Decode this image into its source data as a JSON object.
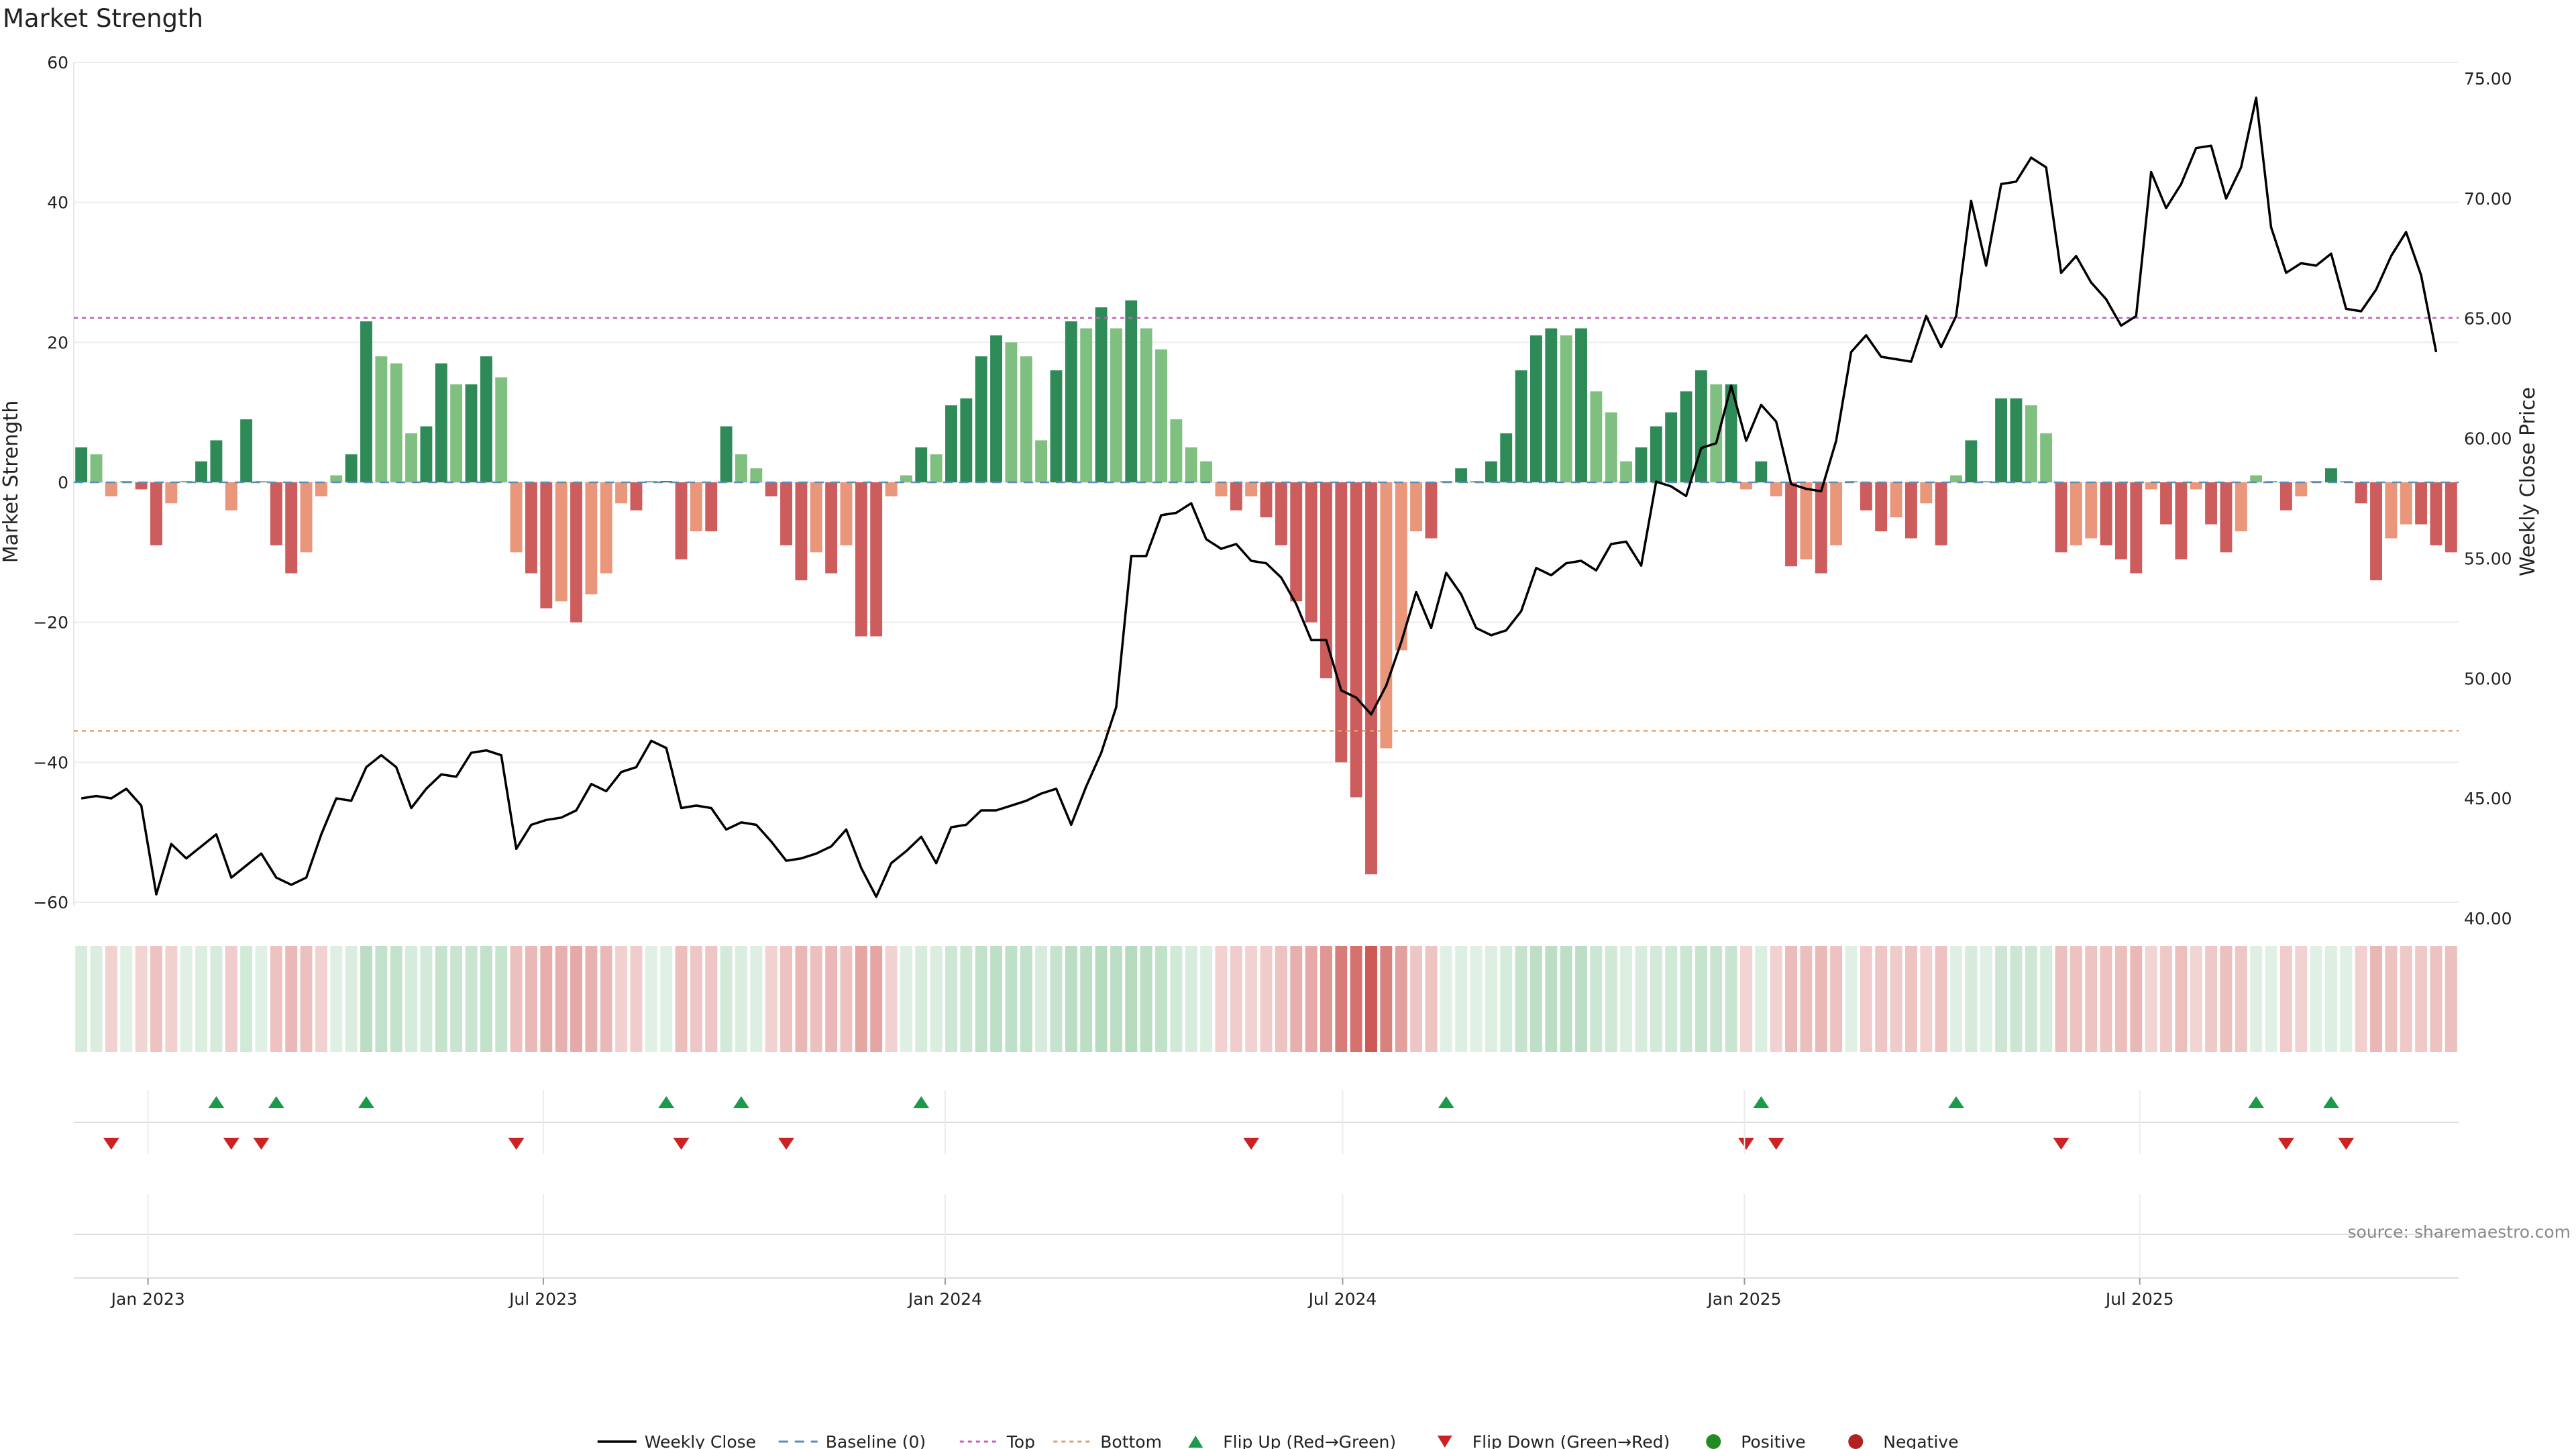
{
  "title": "Market Strength",
  "source": "source: sharemaestro.com",
  "chart_data": {
    "type": "bar",
    "title": "Market Strength",
    "ylabel_left": "Market Strength",
    "ylabel_right": "Weekly Close Price",
    "ylim_left": [
      -60,
      60
    ],
    "ylim_right": [
      40,
      75
    ],
    "yticks_left": [
      "60",
      "40",
      "20",
      "0",
      "−20",
      "−40",
      "−60"
    ],
    "yticks_right": [
      "75.00",
      "70.00",
      "65.00",
      "60.00",
      "55.00",
      "50.00",
      "45.00",
      "40.00"
    ],
    "x_start": "2022-11-28",
    "x_end": "2025-11-24",
    "x_ticks": [
      {
        "date": "2023-01-01",
        "label": "Jan 2023"
      },
      {
        "date": "2023-07-01",
        "label": "Jul 2023"
      },
      {
        "date": "2024-01-01",
        "label": "Jan 2024"
      },
      {
        "date": "2024-07-01",
        "label": "Jul 2024"
      },
      {
        "date": "2025-01-01",
        "label": "Jan 2025"
      },
      {
        "date": "2025-07-01",
        "label": "Jul 2025"
      }
    ],
    "top_level": 23.5,
    "bottom_level": -35.5,
    "strength": [
      5,
      4,
      -2,
      0,
      -1,
      -9,
      -3,
      0,
      3,
      6,
      -4,
      9,
      0,
      -9,
      -13,
      -10,
      -2,
      1,
      4,
      23,
      18,
      17,
      7,
      8,
      17,
      14,
      14,
      18,
      15,
      -10,
      -13,
      -18,
      -17,
      -20,
      -16,
      -13,
      -3,
      -4,
      0,
      0,
      -11,
      -7,
      -7,
      8,
      4,
      2,
      -2,
      -9,
      -14,
      -10,
      -13,
      -9,
      -22,
      -22,
      -2,
      1,
      5,
      4,
      11,
      12,
      18,
      21,
      20,
      18,
      6,
      16,
      23,
      22,
      25,
      22,
      26,
      22,
      19,
      9,
      5,
      3,
      -2,
      -4,
      -2,
      -5,
      -9,
      -17,
      -20,
      -28,
      -40,
      -45,
      -56,
      -38,
      -24,
      -7,
      -8,
      0,
      2,
      0,
      3,
      7,
      16,
      21,
      22,
      21,
      22,
      13,
      10,
      3,
      5,
      8,
      10,
      13,
      16,
      14,
      14,
      -1,
      3,
      -2,
      -12,
      -11,
      -13,
      -9,
      0,
      -4,
      -7,
      -5,
      -8,
      -3,
      -9,
      1,
      6,
      0,
      12,
      12,
      11,
      7,
      -10,
      -9,
      -8,
      -9,
      -11,
      -13,
      -1,
      -6,
      -11,
      -1,
      -6,
      -10,
      -7,
      1,
      0,
      -4,
      -2,
      0,
      2,
      0,
      -3,
      -14,
      -8,
      -6,
      -6,
      -9,
      -10
    ],
    "weekly_close": [
      45.0,
      45.1,
      45.0,
      45.4,
      44.7,
      41.0,
      43.1,
      42.5,
      43.0,
      43.5,
      41.7,
      42.2,
      42.7,
      41.7,
      41.4,
      41.7,
      43.5,
      45.0,
      44.9,
      46.3,
      46.8,
      46.3,
      44.6,
      45.4,
      46.0,
      45.9,
      46.9,
      47.0,
      46.8,
      42.9,
      43.9,
      44.1,
      44.2,
      44.5,
      45.6,
      45.3,
      46.1,
      46.3,
      47.4,
      47.1,
      44.6,
      44.7,
      44.6,
      43.7,
      44.0,
      43.9,
      43.2,
      42.4,
      42.5,
      42.7,
      43.0,
      43.7,
      42.1,
      40.9,
      42.3,
      42.8,
      43.4,
      42.3,
      43.8,
      43.9,
      44.5,
      44.5,
      44.7,
      44.9,
      45.2,
      45.4,
      43.9,
      45.5,
      46.9,
      48.8,
      55.1,
      55.1,
      56.8,
      56.9,
      57.3,
      55.8,
      55.4,
      55.6,
      54.9,
      54.8,
      54.2,
      53.1,
      51.6,
      51.6,
      49.5,
      49.2,
      48.5,
      49.7,
      51.5,
      53.6,
      52.1,
      54.4,
      53.5,
      52.1,
      51.8,
      52.0,
      52.8,
      54.6,
      54.3,
      54.8,
      54.9,
      54.5,
      55.6,
      55.7,
      54.7,
      58.2,
      58.0,
      57.6,
      59.6,
      59.8,
      62.2,
      59.9,
      61.4,
      60.7,
      58.1,
      57.9,
      57.8,
      59.9,
      63.6,
      64.3,
      63.4,
      63.3,
      63.2,
      65.1,
      63.8,
      65.1,
      69.9,
      67.2,
      70.6,
      70.7,
      71.7,
      71.3,
      66.9,
      67.6,
      66.5,
      65.8,
      64.7,
      65.1,
      71.1,
      69.6,
      70.6,
      72.1,
      72.2,
      70.0,
      71.3,
      74.2,
      68.8,
      66.9,
      67.3,
      67.2,
      67.7,
      65.4,
      65.3,
      66.2,
      67.6,
      68.6,
      66.8,
      63.6
    ],
    "flip_up": [
      9,
      13,
      19,
      39,
      44,
      56,
      91,
      112,
      125,
      145,
      150
    ],
    "flip_down": [
      2,
      10,
      12,
      29,
      40,
      47,
      78,
      111,
      113,
      132,
      147,
      151
    ],
    "legend": [
      "Weekly Close",
      "Baseline (0)",
      "Top",
      "Bottom",
      "Flip Up (Red→Green)",
      "Flip Down (Green→Red)",
      "Positive",
      "Negative"
    ],
    "colors": {
      "pos_dark": "#2e8b57",
      "pos_light": "#7fbf7f",
      "neg_dark": "#cd5c5c",
      "neg_light": "#e9967a",
      "line": "#000000",
      "baseline": "#5b8db8",
      "top": "#c060c0",
      "bottom": "#e0a070",
      "flip_up": "#1a9a4a",
      "flip_down": "#cc2222",
      "positive_dot": "#228b22",
      "negative_dot": "#b22222"
    }
  }
}
